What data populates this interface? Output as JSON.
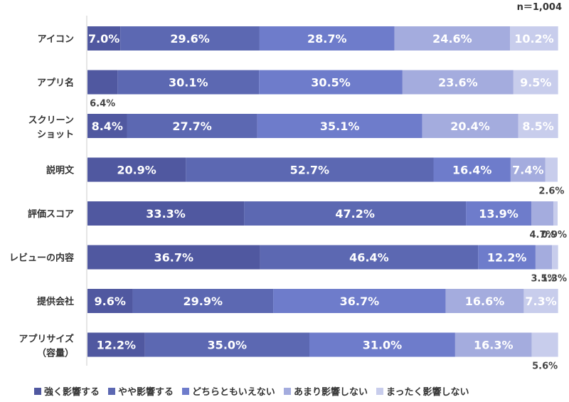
{
  "note": "n＝1,004",
  "chart_data": {
    "type": "bar",
    "orientation": "horizontal",
    "stacked": true,
    "percent_stacked": true,
    "categories": [
      [
        "アイコン"
      ],
      [
        "アプリ名"
      ],
      [
        "スクリーン",
        "ショット"
      ],
      [
        "説明文"
      ],
      [
        "評価スコア"
      ],
      [
        "レビューの内容"
      ],
      [
        "提供会社"
      ],
      [
        "アプリサイズ",
        "（容量）"
      ]
    ],
    "series": [
      {
        "name": "強く影響する",
        "color": "#5058a0",
        "values": [
          7.0,
          6.4,
          8.4,
          20.9,
          33.3,
          36.7,
          9.6,
          12.2
        ]
      },
      {
        "name": "やや影響する",
        "color": "#5c68b2",
        "values": [
          29.6,
          30.1,
          27.7,
          52.7,
          47.2,
          46.4,
          29.9,
          35.0
        ]
      },
      {
        "name": "どちらともいえない",
        "color": "#6e7ccb",
        "values": [
          28.7,
          30.5,
          35.1,
          16.4,
          13.9,
          12.2,
          36.7,
          31.0
        ]
      },
      {
        "name": "あまり影響しない",
        "color": "#a4acde",
        "values": [
          24.6,
          23.6,
          20.4,
          7.4,
          4.7,
          3.5,
          16.6,
          16.3
        ]
      },
      {
        "name": "まったく影響しない",
        "color": "#c8cdec",
        "values": [
          10.2,
          9.5,
          8.5,
          2.6,
          0.9,
          1.3,
          7.3,
          5.6
        ]
      }
    ],
    "xlim": [
      0,
      100
    ],
    "legend_position": "bottom"
  }
}
